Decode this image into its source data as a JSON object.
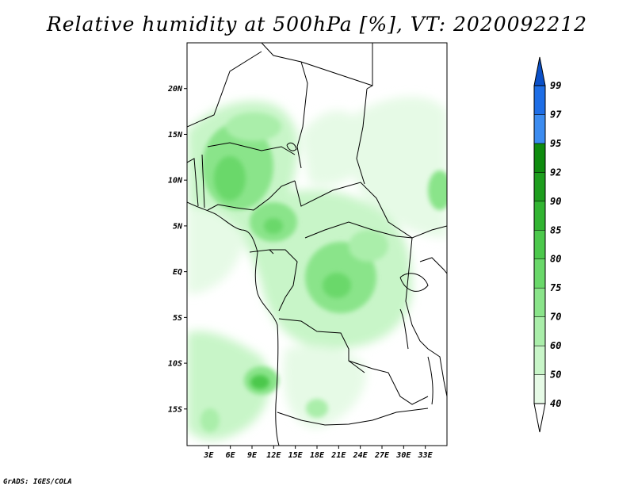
{
  "title": "Relative humidity at 500hPa [%], VT: 2020092212",
  "credit": "GrADS: IGES/COLA",
  "map": {
    "lon_range": [
      0,
      36
    ],
    "lat_range": [
      -19,
      25
    ],
    "lat_ticks": [
      "20N",
      "15N",
      "10N",
      "5N",
      "EQ",
      "5S",
      "10S",
      "15S"
    ],
    "lon_ticks": [
      "3E",
      "6E",
      "9E",
      "12E",
      "15E",
      "18E",
      "21E",
      "24E",
      "27E",
      "30E",
      "33E"
    ]
  },
  "colorbar": {
    "levels": [
      "40",
      "50",
      "60",
      "70",
      "75",
      "80",
      "85",
      "90",
      "92",
      "95",
      "97",
      "99"
    ],
    "colors": [
      "#ffffff",
      "#e6fae6",
      "#c8f5c8",
      "#aaeeaa",
      "#8ae48a",
      "#6ad86a",
      "#4cc84c",
      "#32b432",
      "#1e9e1e",
      "#0f8c0f",
      "#3c8cf0",
      "#1e6ee6",
      "#0a50c8"
    ]
  }
}
